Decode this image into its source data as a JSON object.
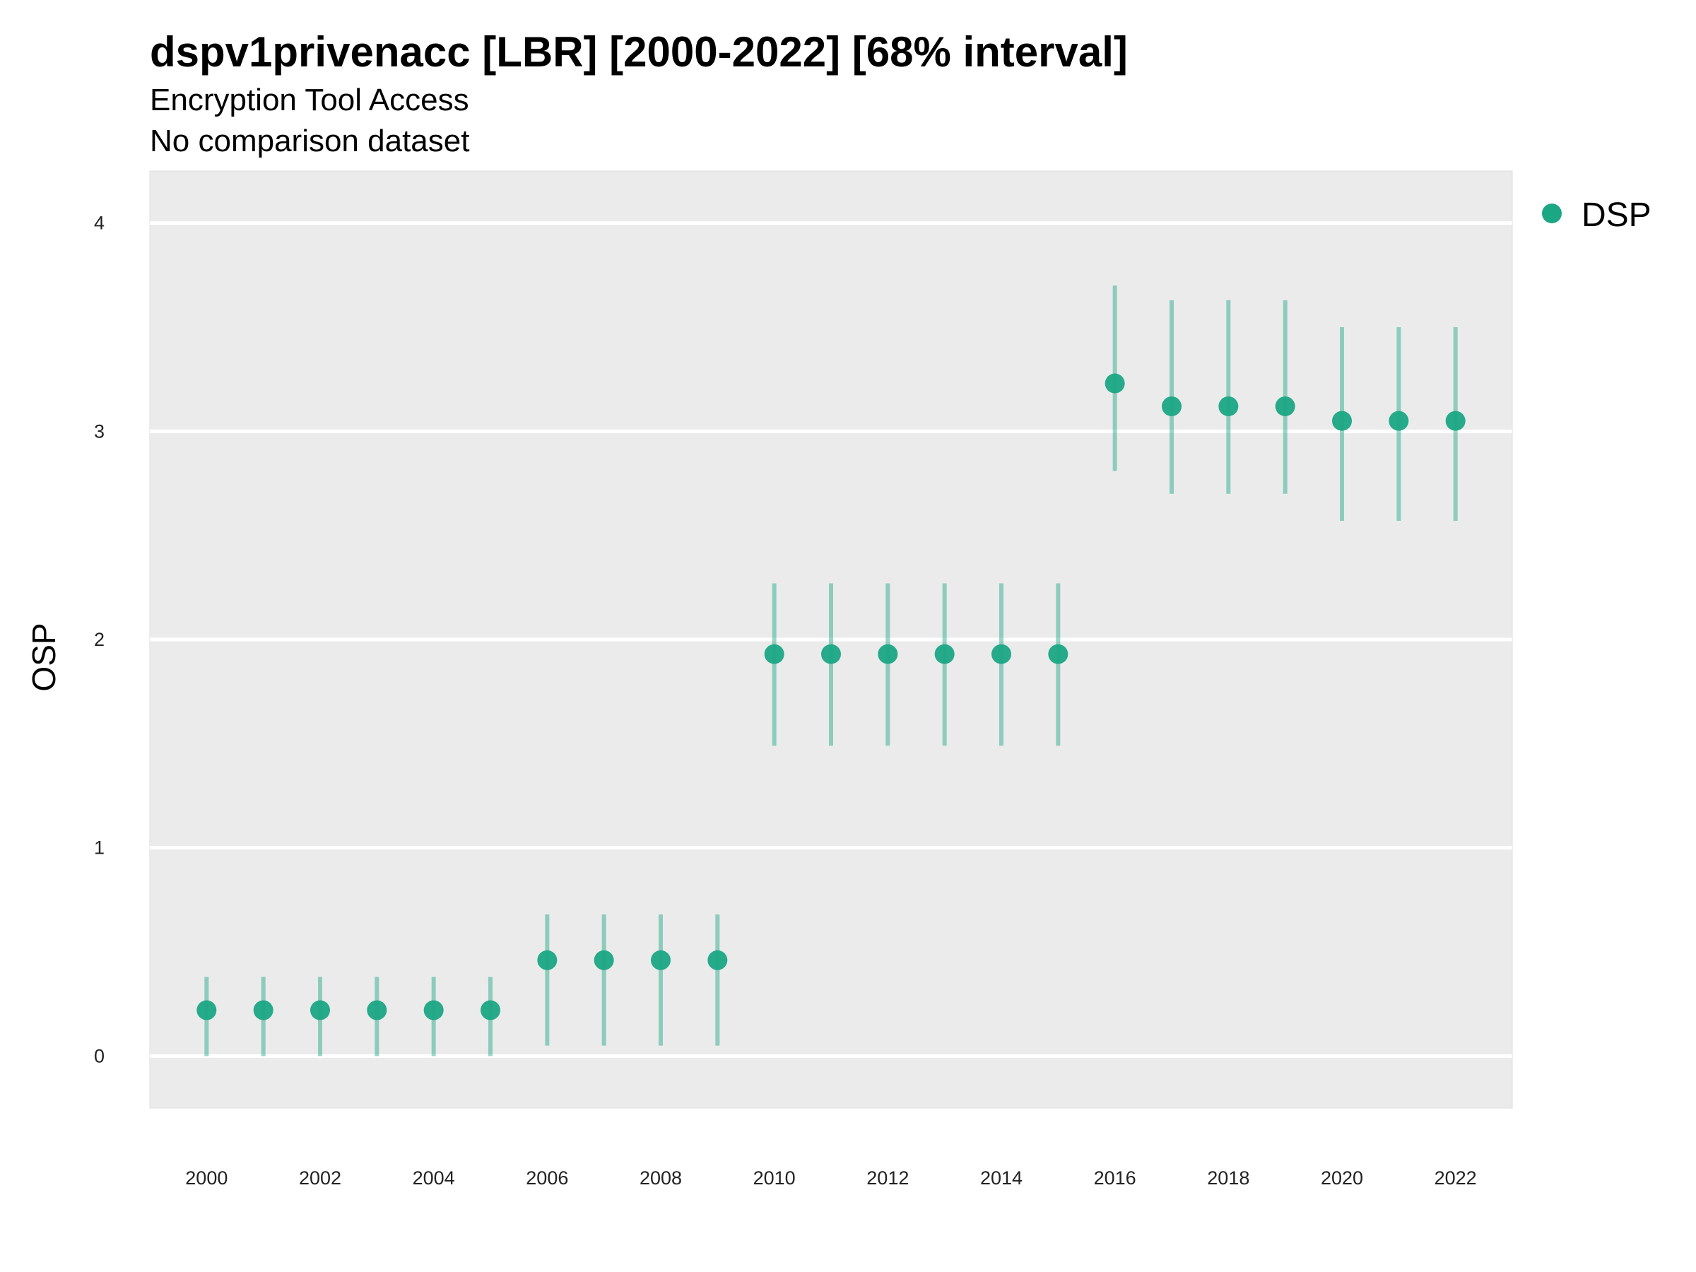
{
  "chart_data": {
    "type": "scatter",
    "title": "dspv1privenacc [LBR] [2000-2022] [68% interval]",
    "subtitle": "Encryption Tool Access",
    "subtitle2": "No comparison dataset",
    "xlabel": "",
    "ylabel": "OSP",
    "ylim": [
      -0.25,
      4.25
    ],
    "yticks": [
      0,
      1,
      2,
      3,
      4
    ],
    "xticks": [
      2000,
      2002,
      2004,
      2006,
      2008,
      2010,
      2012,
      2014,
      2016,
      2018,
      2020,
      2022
    ],
    "grid": true,
    "legend_position": "right",
    "series": [
      {
        "name": "DSP",
        "color": "#1ba784",
        "x": [
          2000,
          2001,
          2002,
          2003,
          2004,
          2005,
          2006,
          2007,
          2008,
          2009,
          2010,
          2011,
          2012,
          2013,
          2014,
          2015,
          2016,
          2017,
          2018,
          2019,
          2020,
          2021,
          2022
        ],
        "y": [
          0.22,
          0.22,
          0.22,
          0.22,
          0.22,
          0.22,
          0.46,
          0.46,
          0.46,
          0.46,
          1.93,
          1.93,
          1.93,
          1.93,
          1.93,
          1.93,
          3.23,
          3.12,
          3.12,
          3.12,
          3.05,
          3.05,
          3.05
        ],
        "lower": [
          0.0,
          0.0,
          0.0,
          0.0,
          0.0,
          0.0,
          0.05,
          0.05,
          0.05,
          0.05,
          1.49,
          1.49,
          1.49,
          1.49,
          1.49,
          1.49,
          2.81,
          2.7,
          2.7,
          2.7,
          2.57,
          2.57,
          2.57
        ],
        "upper": [
          0.38,
          0.38,
          0.38,
          0.38,
          0.38,
          0.38,
          0.68,
          0.68,
          0.68,
          0.68,
          2.27,
          2.27,
          2.27,
          2.27,
          2.27,
          2.27,
          3.7,
          3.63,
          3.63,
          3.63,
          3.5,
          3.5,
          3.5
        ]
      }
    ]
  }
}
